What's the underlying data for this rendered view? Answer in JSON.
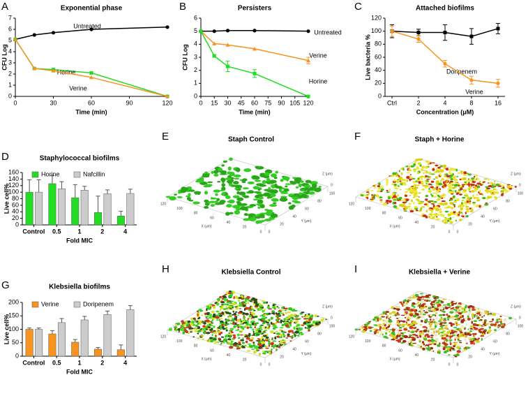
{
  "chart_data": [
    {
      "type": "line",
      "panel": "A",
      "title": "Exponential phase",
      "x_label": "Time (min)",
      "y_label": "CFU Log",
      "x": [
        0,
        15,
        30,
        60,
        120
      ],
      "xlim": [
        0,
        120
      ],
      "xticks": [
        0,
        30,
        60,
        90,
        120
      ],
      "ylim": [
        0,
        7
      ],
      "yticks": [
        0,
        1,
        2,
        3,
        4,
        5,
        6,
        7
      ],
      "series": [
        {
          "name": "Untreated",
          "color": "#000000",
          "marker": "circle",
          "values": [
            5.1,
            5.5,
            5.7,
            6.0,
            6.2
          ]
        },
        {
          "name": "Horine",
          "color": "#22dd22",
          "marker": "square",
          "values": [
            5.1,
            2.5,
            2.4,
            2.1,
            0
          ]
        },
        {
          "name": "Verine",
          "color": "#f7931e",
          "marker": "triangle",
          "values": [
            5.1,
            2.5,
            2.3,
            1.7,
            0
          ]
        }
      ]
    },
    {
      "type": "line",
      "panel": "B",
      "title": "Persisters",
      "x_label": "Time (min)",
      "y_label": "CFU Log",
      "x": [
        0,
        15,
        30,
        60,
        120
      ],
      "xlim": [
        0,
        120
      ],
      "xticks": [
        0,
        15,
        30,
        45,
        60,
        75,
        90,
        105,
        120
      ],
      "ylim": [
        0,
        6
      ],
      "yticks": [
        0,
        1,
        2,
        3,
        4,
        5,
        6
      ],
      "series": [
        {
          "name": "Untreated",
          "color": "#000000",
          "marker": "circle",
          "values": [
            5.0,
            5.0,
            5.05,
            5.05,
            5.0
          ],
          "errors": [
            0,
            0,
            0,
            0,
            0
          ]
        },
        {
          "name": "Verine",
          "color": "#f7931e",
          "marker": "triangle",
          "values": [
            5.0,
            4.05,
            3.95,
            3.65,
            2.75
          ],
          "errors": [
            0,
            0,
            0,
            0,
            0.25
          ]
        },
        {
          "name": "Horine",
          "color": "#22dd22",
          "marker": "square",
          "values": [
            5.0,
            3.1,
            2.3,
            1.75,
            0
          ],
          "errors": [
            0,
            0.1,
            0.4,
            0.3,
            0
          ]
        }
      ]
    },
    {
      "type": "line",
      "panel": "C",
      "title": "Attached biofilms",
      "x_label": "Concentration (μM)",
      "y_label": "Live bacteria %",
      "categories": [
        "Ctrl",
        "2",
        "4",
        "8",
        "16"
      ],
      "ylim": [
        0,
        120
      ],
      "yticks": [
        0,
        20,
        40,
        60,
        80,
        100,
        120
      ],
      "series": [
        {
          "name": "Doripenem",
          "color": "#000000",
          "marker": "square",
          "values": [
            100,
            98,
            98,
            92,
            104
          ],
          "errors": [
            10,
            5,
            12,
            12,
            8
          ]
        },
        {
          "name": "Verine",
          "color": "#f7931e",
          "marker": "circle",
          "values": [
            100,
            88,
            50,
            25,
            20
          ],
          "errors": [
            8,
            5,
            5,
            6,
            6
          ]
        }
      ]
    },
    {
      "type": "bar",
      "panel": "D",
      "title": "Staphylococcal biofilms",
      "x_label": "Fold MIC",
      "y_label": "Live cell%",
      "categories": [
        "Control",
        "0.5",
        "1",
        "2",
        "4"
      ],
      "ylim": [
        0,
        160
      ],
      "yticks": [
        0,
        20,
        40,
        60,
        80,
        100,
        120,
        140,
        160
      ],
      "series": [
        {
          "name": "Horine",
          "color": "#22dd22",
          "values": [
            100,
            126,
            83,
            38,
            27
          ],
          "errors": [
            38,
            25,
            40,
            50,
            15
          ]
        },
        {
          "name": "Nafcillin",
          "color": "#cccccc",
          "values": [
            100,
            110,
            106,
            95,
            96
          ],
          "errors": [
            38,
            22,
            12,
            12,
            13
          ]
        }
      ]
    },
    {
      "type": "bar",
      "panel": "G",
      "title": "Klebsiella biofilms",
      "x_label": "Fold MIC",
      "y_label": "Live cell%",
      "categories": [
        "Control",
        "0.5",
        "1",
        "2",
        "4"
      ],
      "ylim": [
        0,
        200
      ],
      "yticks": [
        0,
        50,
        100,
        150,
        200
      ],
      "series": [
        {
          "name": "Verine",
          "color": "#f7931e",
          "values": [
            100,
            83,
            52,
            26,
            24
          ],
          "errors": [
            5,
            12,
            10,
            6,
            18
          ]
        },
        {
          "name": "Doripenem",
          "color": "#cccccc",
          "values": [
            100,
            125,
            135,
            155,
            173
          ],
          "errors": [
            5,
            15,
            13,
            13,
            15
          ]
        }
      ]
    }
  ],
  "images": [
    {
      "panel": "E",
      "title": "Staph Control",
      "x_label": "X (μm)",
      "y_label": "Y (μm)",
      "z_label": "Z (μm)",
      "x_ticks": [
        0,
        20,
        40,
        60,
        80,
        100,
        120
      ],
      "y_ticks": [
        0,
        20,
        40,
        60,
        80,
        100
      ],
      "z_ticks": [
        0
      ]
    },
    {
      "panel": "F",
      "title": "Staph + Horine",
      "x_label": "X (μm)",
      "y_label": "Y (μm)",
      "z_label": "Z (μm)",
      "x_ticks": [
        0,
        20,
        40,
        60,
        80,
        100,
        120
      ],
      "y_ticks": [
        0,
        20,
        40,
        60,
        80,
        100
      ],
      "z_ticks": [
        0
      ]
    },
    {
      "panel": "H",
      "title": "Klebsiella Control",
      "x_label": "X (μm)",
      "y_label": "Y (μm)",
      "z_label": "Z (μm)",
      "x_ticks": [
        0,
        20,
        40,
        60,
        80,
        100,
        120
      ],
      "y_ticks": [
        0,
        20,
        40,
        60,
        80,
        100
      ],
      "z_ticks": [
        0
      ]
    },
    {
      "panel": "I",
      "title": "Klebsiella + Verine",
      "x_label": "X (μm)",
      "y_label": "Y (μm)",
      "z_label": "Z (μm)",
      "x_ticks": [
        0,
        20,
        40,
        60,
        80,
        100,
        120
      ],
      "y_ticks": [
        0,
        20,
        40,
        60,
        80,
        100
      ],
      "z_ticks": [
        0
      ]
    }
  ]
}
